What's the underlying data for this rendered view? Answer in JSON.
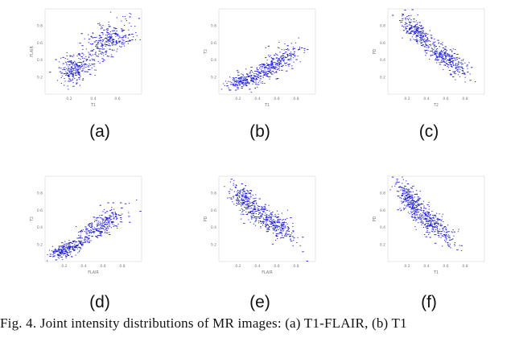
{
  "caption": "Fig. 4.   Joint intensity distributions of MR images: (a) T1-FLAIR, (b) T1",
  "chart_data": [
    {
      "id": "a",
      "label": "(a)",
      "type": "scatter",
      "xlabel": "T1",
      "ylabel": "FLAIR",
      "xlim": [
        0,
        0.8
      ],
      "ylim": [
        0,
        1
      ],
      "xticks": [
        "0.2",
        "0.4",
        "0.6"
      ],
      "yticks": [
        "0.2",
        "0.4",
        "0.6",
        "0.8"
      ],
      "clusters": [
        {
          "cx": 0.24,
          "cy": 0.3,
          "sx": 0.075,
          "sy": 0.09,
          "rho": 0.3,
          "n": 240
        },
        {
          "cx": 0.52,
          "cy": 0.64,
          "sx": 0.1,
          "sy": 0.12,
          "rho": 0.45,
          "n": 280
        }
      ]
    },
    {
      "id": "b",
      "label": "(b)",
      "type": "scatter",
      "xlabel": "T1",
      "ylabel": "T2",
      "xlim": [
        0,
        1
      ],
      "ylim": [
        0,
        1
      ],
      "xticks": [
        "0.2",
        "0.4",
        "0.6",
        "0.8"
      ],
      "yticks": [
        "0.2",
        "0.4",
        "0.6",
        "0.8"
      ],
      "clusters": [
        {
          "cx": 0.25,
          "cy": 0.17,
          "sx": 0.09,
          "sy": 0.05,
          "rho": 0.55,
          "n": 180
        },
        {
          "cx": 0.58,
          "cy": 0.36,
          "sx": 0.14,
          "sy": 0.12,
          "rho": 0.8,
          "n": 300
        }
      ]
    },
    {
      "id": "c",
      "label": "(c)",
      "type": "scatter",
      "xlabel": "T2",
      "ylabel": "PD",
      "xlim": [
        0,
        1
      ],
      "ylim": [
        0,
        1
      ],
      "xticks": [
        "0.2",
        "0.4",
        "0.6",
        "0.8"
      ],
      "yticks": [
        "0.2",
        "0.4",
        "0.6",
        "0.8"
      ],
      "clusters": [
        {
          "cx": 0.3,
          "cy": 0.72,
          "sx": 0.09,
          "sy": 0.11,
          "rho": -0.75,
          "n": 220
        },
        {
          "cx": 0.6,
          "cy": 0.42,
          "sx": 0.12,
          "sy": 0.12,
          "rho": -0.8,
          "n": 280
        }
      ]
    },
    {
      "id": "d",
      "label": "(d)",
      "type": "scatter",
      "xlabel": "FLAIR",
      "ylabel": "T2",
      "xlim": [
        0,
        1
      ],
      "ylim": [
        0,
        1
      ],
      "xticks": [
        "0.2",
        "0.4",
        "0.6",
        "0.8"
      ],
      "yticks": [
        "0.2",
        "0.4",
        "0.6",
        "0.8"
      ],
      "clusters": [
        {
          "cx": 0.2,
          "cy": 0.14,
          "sx": 0.08,
          "sy": 0.05,
          "rho": 0.5,
          "n": 200
        },
        {
          "cx": 0.55,
          "cy": 0.4,
          "sx": 0.14,
          "sy": 0.12,
          "rho": 0.8,
          "n": 300
        }
      ]
    },
    {
      "id": "e",
      "label": "(e)",
      "type": "scatter",
      "xlabel": "FLAIR",
      "ylabel": "PD",
      "xlim": [
        0,
        1
      ],
      "ylim": [
        0,
        1
      ],
      "xticks": [
        "0.2",
        "0.4",
        "0.6",
        "0.8"
      ],
      "yticks": [
        "0.2",
        "0.4",
        "0.6",
        "0.8"
      ],
      "clusters": [
        {
          "cx": 0.26,
          "cy": 0.72,
          "sx": 0.08,
          "sy": 0.1,
          "rho": -0.5,
          "n": 220
        },
        {
          "cx": 0.55,
          "cy": 0.45,
          "sx": 0.12,
          "sy": 0.12,
          "rho": -0.7,
          "n": 300
        }
      ]
    },
    {
      "id": "f",
      "label": "(f)",
      "type": "scatter",
      "xlabel": "T1",
      "ylabel": "PD",
      "xlim": [
        0,
        1
      ],
      "ylim": [
        0,
        1
      ],
      "xticks": [
        "0.2",
        "0.4",
        "0.6",
        "0.8"
      ],
      "yticks": [
        "0.2",
        "0.4",
        "0.6",
        "0.8"
      ],
      "clusters": [
        {
          "cx": 0.22,
          "cy": 0.72,
          "sx": 0.07,
          "sy": 0.11,
          "rho": -0.6,
          "n": 230
        },
        {
          "cx": 0.45,
          "cy": 0.45,
          "sx": 0.11,
          "sy": 0.12,
          "rho": -0.75,
          "n": 290
        }
      ]
    }
  ]
}
